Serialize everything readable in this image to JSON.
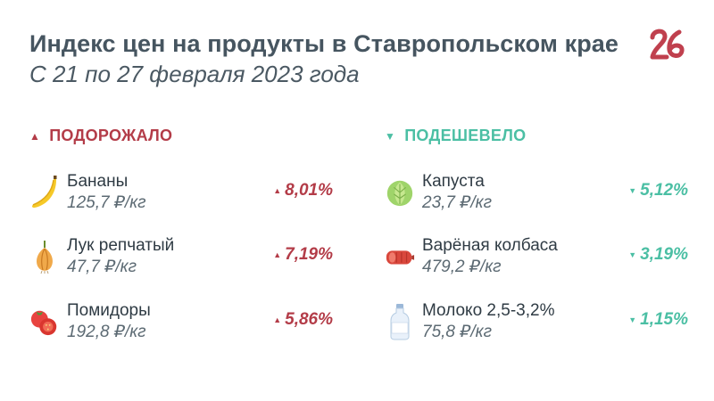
{
  "header": {
    "title": "Индекс цен на продукты в Ставропольском крае",
    "subtitle": "С 21 по 27 февраля 2023 года",
    "logo_text": "26"
  },
  "increased": {
    "heading": "ПОДОРОЖАЛО",
    "arrow": "▲",
    "color": "#b33c48",
    "items": [
      {
        "name": "Бананы",
        "price": "125,7 ₽/кг",
        "change": "8,01%",
        "icon": "banana-icon"
      },
      {
        "name": "Лук репчатый",
        "price": "47,7 ₽/кг",
        "change": "7,19%",
        "icon": "onion-icon"
      },
      {
        "name": "Помидоры",
        "price": "192,8 ₽/кг",
        "change": "5,86%",
        "icon": "tomato-icon"
      }
    ]
  },
  "decreased": {
    "heading": "ПОДЕШЕВЕЛО",
    "arrow": "▼",
    "color": "#4bbfa4",
    "items": [
      {
        "name": "Капуста",
        "price": "23,7 ₽/кг",
        "change": "5,12%",
        "icon": "cabbage-icon"
      },
      {
        "name": "Варёная колбаса",
        "price": "479,2 ₽/кг",
        "change": "3,19%",
        "icon": "sausage-icon"
      },
      {
        "name": "Молоко 2,5-3,2%",
        "price": "75,8 ₽/кг",
        "change": "1,15%",
        "icon": "milk-bottle-icon"
      }
    ]
  }
}
